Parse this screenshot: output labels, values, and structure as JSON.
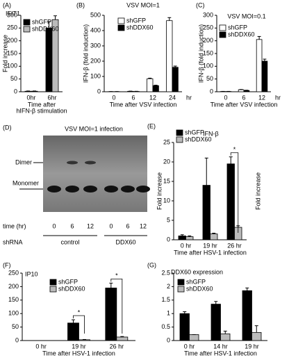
{
  "chart_data": [
    {
      "type": "bar",
      "panel": "(A)",
      "title": "IFIT1",
      "ylabel": "Fold increase",
      "xlabel": [
        "Time after",
        "hIFN-β stimulation"
      ],
      "categories": [
        "0hr",
        "6hr"
      ],
      "series": [
        {
          "name": "shGFP",
          "color": "#000000",
          "values": [
            2,
            250
          ],
          "errors": [
            1,
            25
          ]
        },
        {
          "name": "shDDX60",
          "color": "#bbbbbb",
          "values": [
            2,
            283
          ],
          "errors": [
            1,
            15
          ]
        }
      ],
      "ylim": [
        0,
        300
      ],
      "yticks": [
        0,
        50,
        100,
        150,
        200,
        250,
        300
      ]
    },
    {
      "type": "bar",
      "panel": "(B)",
      "title": "VSV MOI=1",
      "ylabel": "IFN-β (fold induction)",
      "xlabel": [
        "Time after VSV infection"
      ],
      "x_unit": "hr",
      "categories": [
        "0",
        "6",
        "12",
        "24"
      ],
      "series": [
        {
          "name": "shGFP",
          "color": "#ffffff",
          "values": [
            1,
            3,
            85,
            465
          ],
          "errors": [
            0.5,
            1,
            4,
            20
          ]
        },
        {
          "name": "shDDX60",
          "color": "#000000",
          "values": [
            1,
            2,
            40,
            160
          ],
          "errors": [
            0.5,
            1,
            3,
            8
          ]
        }
      ],
      "ylim": [
        0,
        500
      ],
      "yticks": [
        0,
        100,
        200,
        300,
        400,
        500
      ]
    },
    {
      "type": "bar",
      "panel": "(C)",
      "title": "VSV MOI=0.1",
      "ylabel": "IFN-β (fold induction)",
      "xlabel": [
        "Time after VSV infection"
      ],
      "x_unit": "hr",
      "categories": [
        "0",
        "6",
        "12"
      ],
      "series": [
        {
          "name": "shGFP",
          "color": "#ffffff",
          "values": [
            1,
            8,
            205
          ],
          "errors": [
            0.5,
            1,
            12
          ]
        },
        {
          "name": "shDDX60",
          "color": "#000000",
          "values": [
            1,
            5,
            120
          ],
          "errors": [
            0.5,
            1,
            8
          ]
        }
      ],
      "ylim": [
        0,
        300
      ],
      "yticks": [
        0,
        50,
        100,
        150,
        200,
        250,
        300
      ]
    },
    {
      "type": "bar",
      "panel": "(E)",
      "title": "IFN-β",
      "ylabel": "Fold increase",
      "y2label": "Fold increase",
      "xlabel": [
        "Time after HSV-1 infection"
      ],
      "categories": [
        "0 hr",
        "19 hr",
        "26 hr"
      ],
      "series": [
        {
          "name": "shGFP",
          "color": "#000000",
          "values": [
            1,
            14,
            19.5
          ],
          "errors": [
            0.3,
            7,
            1.8
          ]
        },
        {
          "name": "shDDX60",
          "color": "#bbbbbb",
          "values": [
            0.8,
            1.5,
            3.2
          ],
          "errors": [
            0.2,
            0.2,
            0.4
          ]
        }
      ],
      "ylim": [
        0,
        25
      ],
      "yticks": [
        0,
        5,
        10,
        15,
        20,
        25
      ],
      "annotations": [
        {
          "text": "*",
          "category": "26 hr"
        }
      ]
    },
    {
      "type": "bar",
      "panel": "(F)",
      "title": "IP10",
      "xlabel": [
        "Time after HSV-1 infection"
      ],
      "categories": [
        "0 hr",
        "19 hr",
        "26 hr"
      ],
      "series": [
        {
          "name": "shGFP",
          "color": "#000000",
          "values": [
            0,
            65,
            195
          ],
          "errors": [
            0,
            12,
            18
          ]
        },
        {
          "name": "shDDX60",
          "color": "#bbbbbb",
          "values": [
            0,
            3,
            13
          ],
          "errors": [
            0,
            1,
            2
          ]
        }
      ],
      "ylim": [
        0,
        250
      ],
      "yticks": [
        0,
        50,
        100,
        150,
        200,
        250
      ],
      "annotations": [
        {
          "text": "*",
          "category": "19 hr"
        },
        {
          "text": "*",
          "category": "26 hr"
        }
      ]
    },
    {
      "type": "bar",
      "panel": "(G)",
      "title": "DDX60 expression",
      "xlabel": [
        "Time after HSV-1 infection"
      ],
      "categories": [
        "0 hr",
        "14 hr",
        "19 hr"
      ],
      "series": [
        {
          "name": "shGFP",
          "color": "#000000",
          "values": [
            1.0,
            1.35,
            1.85
          ],
          "errors": [
            0.07,
            0.1,
            0.1
          ]
        },
        {
          "name": "shDDX60",
          "color": "#bbbbbb",
          "values": [
            0.22,
            0.25,
            0.3
          ],
          "errors": [
            0,
            0.1,
            0.25
          ]
        }
      ],
      "ylim": [
        0,
        2.5
      ],
      "yticks": [
        0,
        0.5,
        1,
        1.5,
        2,
        2.5
      ]
    }
  ],
  "gel": {
    "panel": "(D)",
    "title": "VSV MOI=1 infection",
    "dimer": "Dimer",
    "monomer": "Monomer",
    "time_label": "time (hr)",
    "times": [
      "0",
      "6",
      "12",
      "0",
      "6",
      "12"
    ],
    "shrna_label": "shRNA",
    "groups": [
      "control",
      "DDX60"
    ]
  }
}
